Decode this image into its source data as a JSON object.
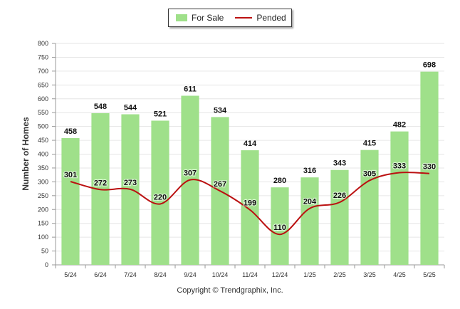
{
  "chart_data": {
    "type": "bar",
    "categories": [
      "5/24",
      "6/24",
      "7/24",
      "8/24",
      "9/24",
      "10/24",
      "11/24",
      "12/24",
      "1/25",
      "2/25",
      "3/25",
      "4/25",
      "5/25"
    ],
    "series": [
      {
        "name": "For Sale",
        "type": "bar",
        "color": "#9fe08a",
        "values": [
          458,
          548,
          544,
          521,
          611,
          534,
          414,
          280,
          316,
          343,
          415,
          482,
          698
        ]
      },
      {
        "name": "Pended",
        "type": "line",
        "color": "#bb1111",
        "values": [
          301,
          272,
          273,
          220,
          307,
          267,
          199,
          110,
          204,
          226,
          305,
          333,
          330
        ]
      }
    ],
    "ylabel": "Number of Homes",
    "ylim": [
      0,
      800
    ],
    "yticks": [
      0,
      50,
      100,
      150,
      200,
      250,
      300,
      350,
      400,
      450,
      500,
      550,
      600,
      650,
      700,
      750,
      800
    ],
    "grid": true,
    "legend_position": "top-center",
    "footer": "Copyright © Trendgraphix, Inc."
  }
}
